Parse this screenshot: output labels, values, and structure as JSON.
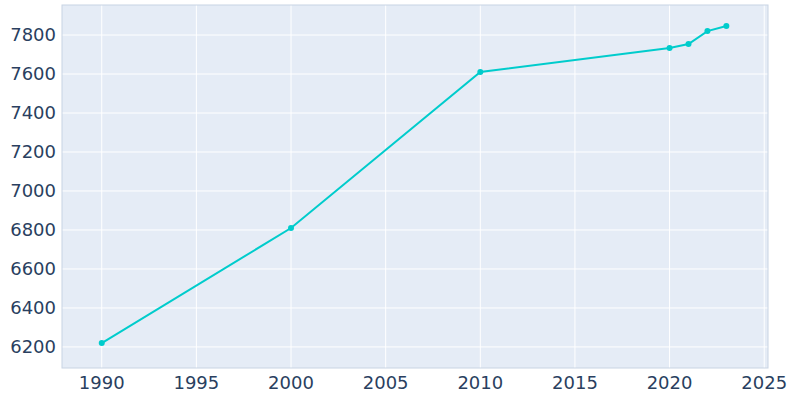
{
  "chart_data": {
    "type": "line",
    "x": [
      1990,
      2000,
      2010,
      2020,
      2021,
      2022,
      2023
    ],
    "values": [
      6220,
      6810,
      7610,
      7733,
      7754,
      7820,
      7846
    ],
    "color": "#00cccc",
    "marker": "circle",
    "xlim": [
      1987.9,
      2025.2
    ],
    "xticks": [
      1990,
      1995,
      2000,
      2005,
      2010,
      2015,
      2020,
      2025
    ],
    "ylim": [
      6092,
      7954
    ],
    "yticks": [
      6200,
      6400,
      6600,
      6800,
      7000,
      7200,
      7400,
      7600,
      7800
    ],
    "grid": true
  }
}
